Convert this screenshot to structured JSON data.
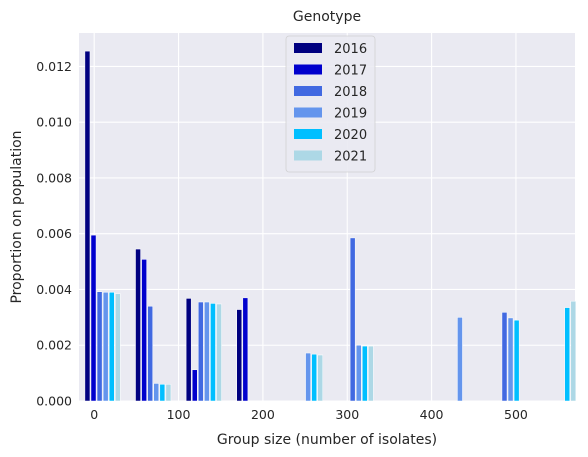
{
  "chart_data": {
    "type": "bar",
    "title": "Genotype",
    "xlabel": "Group size (number of isolates)",
    "ylabel": "Proportion on population",
    "xlim": [
      -18,
      570
    ],
    "ylim": [
      0,
      0.0132
    ],
    "xticks": [
      0,
      100,
      200,
      300,
      400,
      500
    ],
    "yticks": [
      0.0,
      0.002,
      0.004,
      0.006,
      0.008,
      0.01,
      0.012
    ],
    "ytick_labels": [
      "0.000",
      "0.002",
      "0.004",
      "0.006",
      "0.008",
      "0.010",
      "0.012"
    ],
    "grid": true,
    "legend_position": "top-center",
    "bar_width": 6,
    "groups": [
      10,
      70,
      130,
      190,
      250,
      310,
      370,
      430,
      490,
      550
    ],
    "series": [
      {
        "name": "2016",
        "color": "#000080",
        "values": [
          0.01255,
          0.00545,
          0.00368,
          0.00328,
          0,
          0,
          0,
          0,
          0,
          0
        ]
      },
      {
        "name": "2017",
        "color": "#0000cd",
        "values": [
          0.00595,
          0.00508,
          0.00112,
          0.0037,
          0,
          0,
          0,
          0,
          0,
          0
        ]
      },
      {
        "name": "2018",
        "color": "#4169e1",
        "values": [
          0.00392,
          0.0034,
          0.00355,
          0,
          0,
          0.00585,
          0,
          0,
          0.00318,
          0
        ]
      },
      {
        "name": "2019",
        "color": "#6495ed",
        "values": [
          0.0039,
          0.00063,
          0.00355,
          0,
          0.00172,
          0.002,
          0,
          0.003,
          0.00298,
          0
        ]
      },
      {
        "name": "2020",
        "color": "#00bfff",
        "values": [
          0.0039,
          0.0006,
          0.0035,
          0,
          0.00168,
          0.00197,
          0,
          0,
          0.0029,
          0.00335
        ]
      },
      {
        "name": "2021",
        "color": "#add8e6",
        "values": [
          0.00385,
          0.0006,
          0.00348,
          0,
          0.00165,
          0.00197,
          0,
          0,
          0,
          0.00358
        ]
      }
    ]
  }
}
